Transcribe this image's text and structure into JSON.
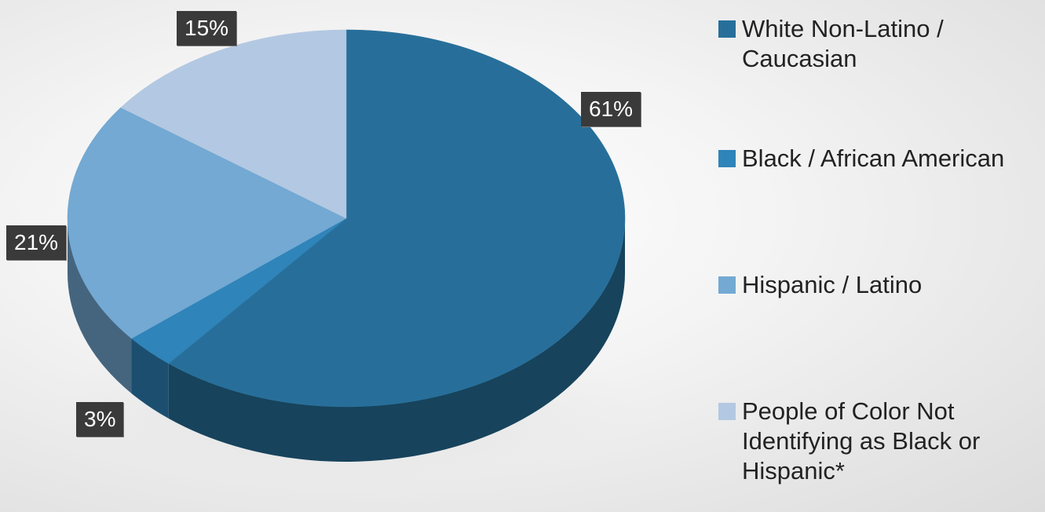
{
  "chart_data": {
    "type": "pie",
    "series": [
      {
        "name": "White Non-Latino / Caucasian",
        "value": 61,
        "label": "61%",
        "color": "#276f9a"
      },
      {
        "name": "Black / African American",
        "value": 3,
        "label": "3%",
        "color": "#2f84b9"
      },
      {
        "name": "Hispanic / Latino",
        "value": 21,
        "label": "21%",
        "color": "#73a9d3"
      },
      {
        "name": "People of Color Not Identifying as Black or Hispanic*",
        "value": 15,
        "label": "15%",
        "color": "#b3c8e2"
      }
    ],
    "legend_position": "right",
    "style": "3d"
  }
}
